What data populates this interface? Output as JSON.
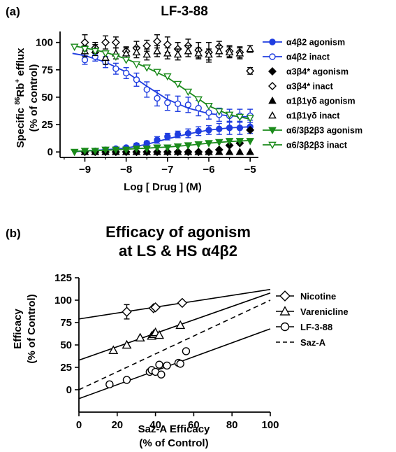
{
  "chart_data": [
    {
      "panel_label": "(a)",
      "type": "line",
      "title": "LF-3-88",
      "xlabel": "Log [ Drug ] (M)",
      "ylabel_line1_prefix": "Specific ",
      "ylabel_line1_sup": "86",
      "ylabel_line1_main": "Rb",
      "ylabel_line1_sup2": "+",
      "ylabel_line1_suffix": " efflux",
      "ylabel_line2": "(% of control)",
      "xlim": [
        -9.6,
        -4.8
      ],
      "ylim": [
        -5,
        110
      ],
      "xticks": [
        -9,
        -8,
        -7,
        -6,
        -5
      ],
      "xtick_labels": [
        "−9",
        "−8",
        "−7",
        "−6",
        "−5"
      ],
      "yticks": [
        0,
        25,
        50,
        75,
        100
      ],
      "ytick_labels": [
        "0",
        "25",
        "50",
        "75",
        "100"
      ],
      "legend_position": "right",
      "series": [
        {
          "name": "α4β2 agonism",
          "color": "#1f3de0",
          "marker": "circle",
          "filled": true,
          "x": [
            -9,
            -8.75,
            -8.5,
            -8.25,
            -8,
            -7.75,
            -7.5,
            -7.25,
            -7,
            -6.75,
            -6.5,
            -6.25,
            -6,
            -5.75,
            -5.5,
            -5.25,
            -5
          ],
          "y": [
            0,
            1,
            2,
            3,
            4,
            6,
            8,
            11,
            14,
            16,
            17,
            19,
            20,
            21,
            22,
            22,
            23
          ],
          "err": [
            1,
            1,
            1,
            1,
            1,
            2,
            2,
            3,
            3,
            3,
            4,
            4,
            4,
            5,
            6,
            6,
            6
          ],
          "fit": {
            "x": [
              -9.3,
              -9,
              -8.5,
              -8,
              -7.5,
              -7,
              -6.5,
              -6,
              -5.5,
              -5
            ],
            "y": [
              0,
              1,
              2,
              3.5,
              7,
              12,
              16.5,
              20,
              22,
              23
            ]
          }
        },
        {
          "name": "α4β2 inact",
          "color": "#1f3de0",
          "marker": "circle",
          "filled": false,
          "x": [
            -9,
            -8.75,
            -8.5,
            -8.25,
            -8,
            -7.75,
            -7.5,
            -7.25,
            -7,
            -6.75,
            -6.5,
            -6.25,
            -6,
            -5.75,
            -5.5,
            -5.25,
            -5
          ],
          "y": [
            84,
            87,
            82,
            76,
            72,
            66,
            57,
            49,
            45,
            44,
            43,
            40,
            36,
            34,
            33,
            33,
            33
          ],
          "err": [
            4,
            4,
            5,
            5,
            5,
            6,
            7,
            7,
            7,
            7,
            7,
            7,
            6,
            6,
            6,
            6,
            6
          ],
          "fit": {
            "x": [
              -9.3,
              -9,
              -8.5,
              -8,
              -7.5,
              -7,
              -6.5,
              -6,
              -5.5,
              -5
            ],
            "y": [
              90,
              88,
              82,
              73,
              60,
              48,
              40,
              35,
              33,
              32
            ]
          }
        },
        {
          "name": "α3β4* agonism",
          "color": "#000000",
          "marker": "diamond",
          "filled": true,
          "x": [
            -9,
            -8.75,
            -8.5,
            -8.25,
            -8,
            -7.75,
            -7.5,
            -7.25,
            -7,
            -6.75,
            -6.5,
            -6.25,
            -6,
            -5.75,
            -5.5,
            -5.25,
            -5
          ],
          "y": [
            0,
            0,
            0,
            0,
            0,
            0,
            0,
            0,
            0,
            0,
            0,
            0,
            0,
            2,
            6,
            8,
            20
          ],
          "err": []
        },
        {
          "name": "α3β4* inact",
          "color": "#000000",
          "marker": "diamond",
          "filled": false,
          "x": [
            -9,
            -8.75,
            -8.5,
            -8.25,
            -8,
            -7.75,
            -7.5,
            -7.25,
            -7,
            -6.75,
            -6.5,
            -6.25,
            -6,
            -5.75,
            -5.5,
            -5.25,
            -5
          ],
          "y": [
            100,
            95,
            100,
            100,
            92,
            95,
            97,
            101,
            98,
            94,
            97,
            93,
            91,
            96,
            92,
            91,
            74
          ],
          "err": [
            7,
            5,
            6,
            5,
            4,
            6,
            5,
            6,
            7,
            6,
            6,
            7,
            9,
            5,
            5,
            5,
            3
          ]
        },
        {
          "name": "α1β1γδ agonism",
          "color": "#000000",
          "marker": "triangle-up",
          "filled": true,
          "x": [
            -9,
            -8.75,
            -8.5,
            -8.25,
            -8,
            -7.75,
            -7.5,
            -7.25,
            -7,
            -6.75,
            -6.5,
            -6.25,
            -6,
            -5.75,
            -5.5,
            -5.25,
            -5
          ],
          "y": [
            0,
            0,
            0,
            0,
            0,
            0,
            0,
            0,
            0,
            0,
            0,
            0,
            0,
            0,
            0,
            0,
            0
          ],
          "err": []
        },
        {
          "name": "α1β1γδ inact",
          "color": "#000000",
          "marker": "triangle-up",
          "filled": false,
          "x": [
            -9,
            -8.75,
            -8.5,
            -8.25,
            -8,
            -7.75,
            -7.5,
            -7.25,
            -7,
            -6.75,
            -6.5,
            -6.25,
            -6,
            -5.75,
            -5.5,
            -5.25,
            -5
          ],
          "y": [
            92,
            93,
            86,
            90,
            90,
            91,
            89,
            92,
            90,
            89,
            92,
            90,
            89,
            92,
            91,
            90,
            94
          ],
          "err": [
            5,
            5,
            6,
            5,
            5,
            5,
            5,
            5,
            5,
            5,
            5,
            5,
            5,
            5,
            5,
            5,
            3
          ]
        },
        {
          "name": "α6/3β2β3 agonism",
          "color": "#1a8a1a",
          "marker": "triangle-down",
          "filled": true,
          "x": [
            -9.25,
            -9,
            -8.75,
            -8.5,
            -8.25,
            -8,
            -7.75,
            -7.5,
            -7.25,
            -7,
            -6.75,
            -6.5,
            -6.25,
            -6,
            -5.75,
            -5.5,
            -5.25,
            -5
          ],
          "y": [
            0,
            1,
            1,
            2,
            2,
            2,
            3,
            3,
            4,
            4,
            5,
            6,
            7,
            8,
            9,
            10,
            10,
            10
          ],
          "err": [],
          "fit": {
            "x": [
              -9.3,
              -9,
              -8.5,
              -8,
              -7.5,
              -7,
              -6.5,
              -6,
              -5.5,
              -5
            ],
            "y": [
              0.5,
              1,
              1.5,
              2.5,
              3.5,
              4.5,
              6,
              8,
              9.5,
              10.5
            ]
          }
        },
        {
          "name": "α6/3β2β3 inact",
          "color": "#1a8a1a",
          "marker": "triangle-down",
          "filled": false,
          "x": [
            -9.25,
            -9,
            -8.75,
            -8.5,
            -8.25,
            -8,
            -7.75,
            -7.5,
            -7.25,
            -7,
            -6.75,
            -6.5,
            -6.25,
            -6,
            -5.75,
            -5.5,
            -5.25,
            -5
          ],
          "y": [
            96,
            94,
            92,
            90,
            87,
            84,
            80,
            77,
            73,
            69,
            62,
            55,
            48,
            42,
            37,
            34,
            32,
            31
          ],
          "err": [],
          "fit": {
            "x": [
              -9.3,
              -9,
              -8.5,
              -8,
              -7.5,
              -7,
              -6.5,
              -6,
              -5.5,
              -5
            ],
            "y": [
              97,
              95,
              91,
              85,
              77,
              68,
              55,
              42,
              34,
              30
            ]
          }
        }
      ]
    },
    {
      "panel_label": "(b)",
      "type": "scatter",
      "title": "Efficacy of agonism",
      "subtitle": "at LS & HS α4β2",
      "xlabel": "Saz-A Efficacy",
      "xlabel_line2": "(% of Control)",
      "ylabel": "Efficacy",
      "ylabel_line2": "(% of Control)",
      "xlim": [
        0,
        100
      ],
      "ylim": [
        -25,
        125
      ],
      "xticks": [
        0,
        20,
        40,
        60,
        80,
        100
      ],
      "xtick_labels": [
        "0",
        "20",
        "40",
        "60",
        "80",
        "100"
      ],
      "yticks": [
        0,
        25,
        50,
        75,
        100,
        125
      ],
      "ytick_labels": [
        "0",
        "25",
        "50",
        "75",
        "100",
        "125"
      ],
      "legend_position": "right",
      "series": [
        {
          "name": "Nicotine",
          "marker": "diamond",
          "line": "solid",
          "x": [
            25,
            39,
            40,
            54
          ],
          "y": [
            87,
            91,
            92,
            97
          ],
          "err": [
            8,
            0,
            0,
            0
          ],
          "fit": {
            "x": [
              0,
              100
            ],
            "y": [
              79,
              112
            ]
          }
        },
        {
          "name": "Varenicline",
          "marker": "triangle-up",
          "line": "solid",
          "x": [
            18,
            25,
            32,
            38,
            39,
            40,
            42,
            53
          ],
          "y": [
            44,
            50,
            58,
            60,
            62,
            64,
            61,
            72
          ],
          "err": [],
          "fit": {
            "x": [
              0,
              100
            ],
            "y": [
              33,
              108
            ]
          }
        },
        {
          "name": "LF-3-88",
          "marker": "circle",
          "line": "solid",
          "x": [
            16,
            25,
            37,
            38,
            40,
            42,
            43,
            46,
            52,
            53,
            56
          ],
          "y": [
            6,
            11,
            20,
            22,
            20,
            28,
            17,
            27,
            30,
            29,
            43
          ],
          "err": [],
          "fit": {
            "x": [
              0,
              100
            ],
            "y": [
              -10,
              68
            ]
          }
        },
        {
          "name": "Saz-A",
          "marker": "none",
          "line": "dashed",
          "x": [],
          "y": [],
          "err": [],
          "fit": {
            "x": [
              0,
              100
            ],
            "y": [
              0,
              100
            ]
          }
        }
      ]
    }
  ]
}
